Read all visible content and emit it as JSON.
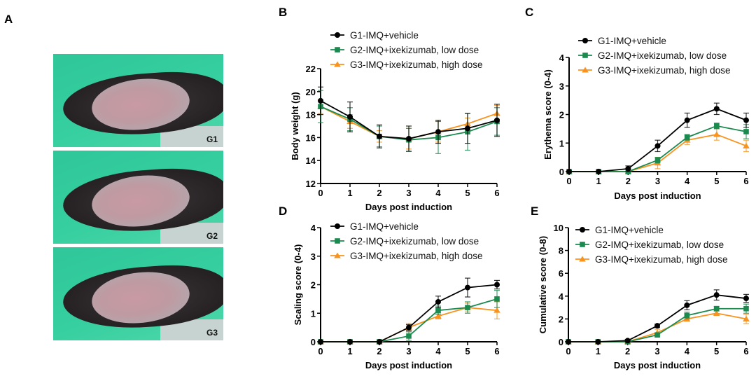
{
  "panel_labels": {
    "A": "A",
    "B": "B",
    "C": "C",
    "D": "D",
    "E": "E"
  },
  "photos": [
    {
      "group": "G1"
    },
    {
      "group": "G2"
    },
    {
      "group": "G3"
    }
  ],
  "series_style": [
    {
      "name": "G1-IMQ+vehicle",
      "color": "#000000",
      "marker": "circle"
    },
    {
      "name": "G2-IMQ+ixekizumab, low dose",
      "color": "#1a8a4e",
      "marker": "square"
    },
    {
      "name": "G3-IMQ+ixekizumab, high dose",
      "color": "#f7931e",
      "marker": "triangle"
    }
  ],
  "chart_data": [
    {
      "panel": "B",
      "type": "line",
      "xlabel": "Days post induction",
      "ylabel": "Body weight (g)",
      "x": [
        0,
        1,
        2,
        3,
        4,
        5,
        6
      ],
      "xlim": [
        0,
        6
      ],
      "ylim": [
        12,
        22
      ],
      "yticks": [
        12,
        14,
        16,
        18,
        20,
        22
      ],
      "legend": "top",
      "series": [
        {
          "name": "G1-IMQ+vehicle",
          "values": [
            19.2,
            17.8,
            16.1,
            15.9,
            16.5,
            16.8,
            17.5
          ],
          "error": [
            1.2,
            1.3,
            1.0,
            1.1,
            1.0,
            1.3,
            1.4
          ]
        },
        {
          "name": "G2-IMQ+ixekizumab, low dose",
          "values": [
            18.7,
            17.6,
            16.1,
            15.8,
            16.0,
            16.5,
            17.4
          ],
          "error": [
            1.4,
            1.0,
            0.9,
            1.0,
            1.4,
            1.6,
            1.2
          ]
        },
        {
          "name": "G3-IMQ+ixekizumab, high dose",
          "values": [
            18.7,
            17.4,
            16.1,
            15.9,
            16.5,
            17.2,
            18.1
          ],
          "error": [
            0.6,
            0.6,
            0.5,
            0.9,
            0.9,
            0.5,
            0.7
          ]
        }
      ]
    },
    {
      "panel": "C",
      "type": "line",
      "xlabel": "Days post induction",
      "ylabel": "Erythema score (0-4)",
      "x": [
        0,
        1,
        2,
        3,
        4,
        5,
        6
      ],
      "xlim": [
        0,
        6
      ],
      "ylim": [
        0,
        4
      ],
      "yticks": [
        0,
        1,
        2,
        3,
        4
      ],
      "legend": "top",
      "series": [
        {
          "name": "G1-IMQ+vehicle",
          "values": [
            0,
            0,
            0.1,
            0.9,
            1.8,
            2.2,
            1.8
          ],
          "error": [
            0,
            0,
            0.1,
            0.2,
            0.25,
            0.2,
            0.25
          ]
        },
        {
          "name": "G2-IMQ+ixekizumab, low dose",
          "values": [
            0,
            0,
            0,
            0.4,
            1.2,
            1.6,
            1.4
          ],
          "error": [
            0,
            0,
            0,
            0.1,
            0.1,
            0.1,
            0.25
          ]
        },
        {
          "name": "G3-IMQ+ixekizumab, high dose",
          "values": [
            0,
            0,
            0,
            0.3,
            1.1,
            1.3,
            0.9
          ],
          "error": [
            0,
            0,
            0,
            0.2,
            0.15,
            0.2,
            0.2
          ]
        }
      ]
    },
    {
      "panel": "D",
      "type": "line",
      "xlabel": "Days post induction",
      "ylabel": "Scaling score (0-4)",
      "x": [
        0,
        1,
        2,
        3,
        4,
        5,
        6
      ],
      "xlim": [
        0,
        6
      ],
      "ylim": [
        0,
        4
      ],
      "yticks": [
        0,
        1,
        2,
        3,
        4
      ],
      "legend": "top",
      "series": [
        {
          "name": "G1-IMQ+vehicle",
          "values": [
            0,
            0,
            0,
            0.5,
            1.4,
            1.9,
            2.0
          ],
          "error": [
            0,
            0,
            0,
            0.1,
            0.2,
            0.33,
            0.15
          ]
        },
        {
          "name": "G2-IMQ+ixekizumab, low dose",
          "values": [
            0,
            0,
            0,
            0.2,
            1.1,
            1.2,
            1.5
          ],
          "error": [
            0,
            0,
            0,
            0.15,
            0.15,
            0.2,
            0.3
          ]
        },
        {
          "name": "G3-IMQ+ixekizumab, high dose",
          "values": [
            0,
            0,
            0,
            0.5,
            0.9,
            1.2,
            1.1
          ],
          "error": [
            0,
            0,
            0,
            0.15,
            0.1,
            0.15,
            0.3
          ]
        }
      ]
    },
    {
      "panel": "E",
      "type": "line",
      "xlabel": "Days post induction",
      "ylabel": "Cumulative score (0-8)",
      "x": [
        0,
        1,
        2,
        3,
        4,
        5,
        6
      ],
      "xlim": [
        0,
        6
      ],
      "ylim": [
        0,
        10
      ],
      "yticks": [
        0,
        2,
        4,
        6,
        8,
        10
      ],
      "legend": "top",
      "series": [
        {
          "name": "G1-IMQ+vehicle",
          "values": [
            0,
            0,
            0.1,
            1.4,
            3.2,
            4.1,
            3.8
          ],
          "error": [
            0,
            0,
            0.1,
            0.15,
            0.4,
            0.45,
            0.35
          ]
        },
        {
          "name": "G2-IMQ+ixekizumab, low dose",
          "values": [
            0,
            0,
            0,
            0.6,
            2.3,
            2.9,
            2.9
          ],
          "error": [
            0,
            0,
            0,
            0.15,
            0.3,
            0.2,
            0.4
          ]
        },
        {
          "name": "G3-IMQ+ixekizumab, high dose",
          "values": [
            0,
            0,
            0,
            0.8,
            2.0,
            2.5,
            2.0
          ],
          "error": [
            0,
            0,
            0,
            0.3,
            0.2,
            0.2,
            0.4
          ]
        }
      ]
    }
  ]
}
